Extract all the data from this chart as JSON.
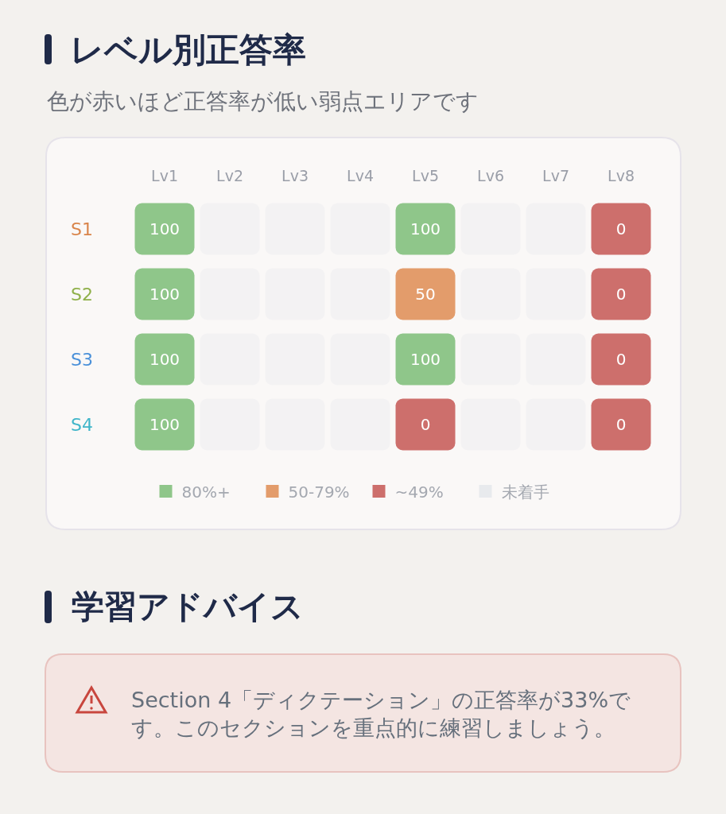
{
  "chart_data": {
    "type": "heatmap",
    "title": "レベル別正答率",
    "subtitle": "色が赤いほど正答率が低い弱点エリアです",
    "categories": [
      "Lv1",
      "Lv2",
      "Lv3",
      "Lv4",
      "Lv5",
      "Lv6",
      "Lv7",
      "Lv8"
    ],
    "y_categories": [
      "S1",
      "S2",
      "S3",
      "S4"
    ],
    "cells": [
      [
        100,
        null,
        null,
        null,
        100,
        null,
        null,
        0
      ],
      [
        100,
        null,
        null,
        null,
        50,
        null,
        null,
        0
      ],
      [
        100,
        null,
        null,
        null,
        100,
        null,
        null,
        0
      ],
      [
        100,
        null,
        null,
        null,
        0,
        null,
        null,
        0
      ]
    ],
    "colors": [
      [
        "#8fc68a",
        "#f3f2f3",
        "#f3f2f3",
        "#f3f2f3",
        "#8fc68a",
        "#f3f2f3",
        "#f3f2f3",
        "#cd6f6c"
      ],
      [
        "#8fc68a",
        "#f3f2f3",
        "#f3f2f3",
        "#f3f2f3",
        "#e39c6b",
        "#f3f2f3",
        "#f3f2f3",
        "#cd6f6c"
      ],
      [
        "#8fc68a",
        "#f3f2f3",
        "#f3f2f3",
        "#f3f2f3",
        "#8fc68a",
        "#f3f2f3",
        "#f3f2f3",
        "#cd6f6c"
      ],
      [
        "#8fc68a",
        "#f3f2f3",
        "#f3f2f3",
        "#f3f2f3",
        "#cd6f6c",
        "#f3f2f3",
        "#f3f2f3",
        "#cd6f6c"
      ]
    ],
    "data_labels": true,
    "series": [
      {
        "name": "80%+",
        "color": "#8fc68a",
        "values": [
          null,
          null,
          null,
          null,
          null,
          null,
          null,
          null
        ]
      },
      {
        "name": "50-79%",
        "color": "#e39c6b",
        "values": [
          null,
          null,
          null,
          null,
          null,
          null,
          null,
          null
        ]
      },
      {
        "name": "~49%",
        "color": "#cd6f6c",
        "values": [
          null,
          null,
          null,
          null,
          null,
          null,
          null,
          null
        ]
      },
      {
        "name": "未着手",
        "color": "#e8eaed",
        "values": [
          null,
          null,
          null,
          null,
          null,
          null,
          null,
          null
        ]
      }
    ],
    "legend": "bottom",
    "annotations": [
      "学習アドバイス",
      "Section 4「ディクテーション」の正答率が33%です。このセクションを重点的に練習しましょう。"
    ]
  }
}
